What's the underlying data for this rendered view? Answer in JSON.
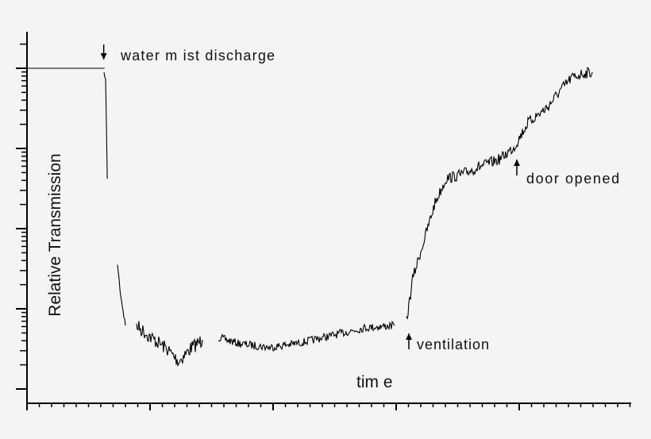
{
  "chart_data": {
    "type": "line",
    "title": "",
    "xlabel": "tim e",
    "ylabel": "Relative Transmission",
    "y_scale": "log",
    "ylim": [
      8e-05,
      3
    ],
    "xlim": [
      0,
      4.9
    ],
    "grid": false,
    "tick_labels_shown": false,
    "line_color": "#000000",
    "series": [
      {
        "x": [
          0,
          0.63
        ],
        "y": [
          1,
          1
        ]
      },
      {
        "x": [
          0.626,
          0.639,
          0.652
        ],
        "y": [
          0.87,
          0.73,
          0.042
        ]
      },
      {
        "x": [
          0.735,
          0.761,
          0.8
        ],
        "y": [
          0.0037,
          0.0015,
          0.00062
        ]
      },
      {
        "x": [
          0.89,
          1.006,
          1.135,
          1.232,
          1.329,
          1.426
        ],
        "y": [
          0.00062,
          0.00044,
          0.00032,
          0.00022,
          0.00032,
          0.00041
        ]
      },
      {
        "x": [
          1.555,
          1.716,
          1.974,
          2.232,
          2.49,
          2.748,
          2.987
        ],
        "y": [
          0.00044,
          0.00037,
          0.00033,
          0.00038,
          0.00047,
          0.00058,
          0.00062
        ]
      },
      {
        "x": [
          3.084,
          3.135,
          3.232,
          3.316,
          3.406,
          3.523,
          3.652,
          3.845,
          3.961,
          4.071,
          4.232,
          4.329,
          4.426,
          4.523,
          4.594
        ],
        "y": [
          0.00069,
          0.0024,
          0.0076,
          0.021,
          0.042,
          0.047,
          0.057,
          0.074,
          0.105,
          0.21,
          0.33,
          0.52,
          0.76,
          0.87,
          0.89
        ]
      }
    ],
    "annotations": [
      {
        "text": "water m ist discharge",
        "arrow": "down",
        "x": 0.63
      },
      {
        "text": "ventilation",
        "arrow": "up",
        "x": 3.1
      },
      {
        "text": "door opened",
        "arrow": "up",
        "x": 3.98
      }
    ]
  }
}
